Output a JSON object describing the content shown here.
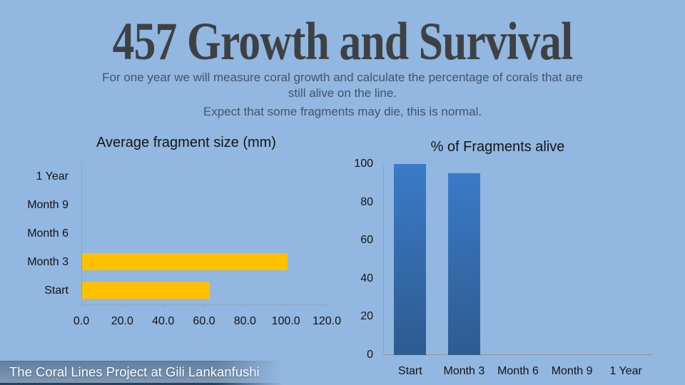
{
  "slide": {
    "title": "457 Growth and Survival",
    "subtitle_lines": [
      "For one year we will measure coral growth and calculate the percentage of corals that are",
      "still alive on the line."
    ],
    "note": "Expect that some fragments may die, this is normal.",
    "footer": "The Coral Lines Project at Gili Lankanfushi",
    "background_color": "#92b7e0"
  },
  "chart_data": [
    {
      "type": "bar",
      "orientation": "horizontal",
      "title": "Average fragment size (mm)",
      "categories": [
        "Start",
        "Month 3",
        "Month 6",
        "Month 9",
        "1 Year"
      ],
      "values": [
        62.5,
        100.5,
        0,
        0,
        0
      ],
      "xlim": [
        0,
        120
      ],
      "xticks": [
        "0.0",
        "20.0",
        "40.0",
        "60.0",
        "80.0",
        "100.0",
        "120.0"
      ],
      "bar_color": "#ffc000",
      "grid": false,
      "legend": false
    },
    {
      "type": "bar",
      "orientation": "vertical",
      "title": "% of Fragments alive",
      "categories": [
        "Start",
        "Month 3",
        "Month 6",
        "Month 9",
        "1 Year"
      ],
      "values": [
        100,
        95,
        0,
        0,
        0
      ],
      "ylim": [
        0,
        100
      ],
      "yticks": [
        "100",
        "80",
        "60",
        "40",
        "20",
        "0"
      ],
      "bar_color_top": "#3b7ac8",
      "bar_color_bottom": "#2e5b90",
      "grid": false,
      "legend": false
    }
  ]
}
